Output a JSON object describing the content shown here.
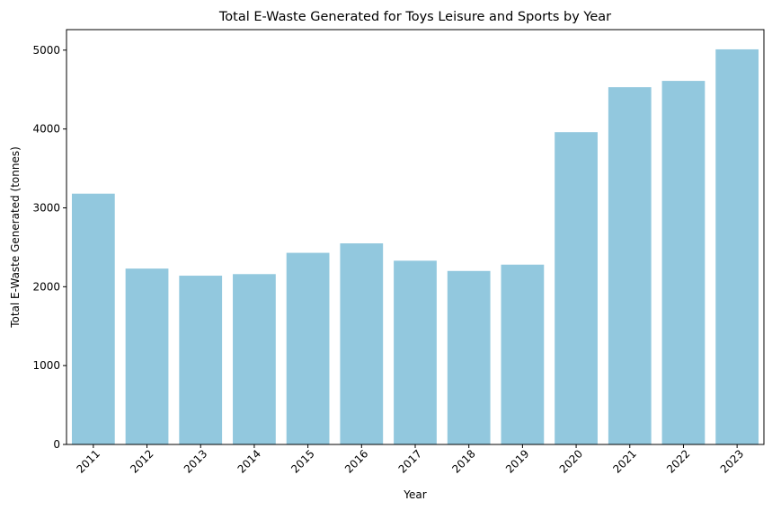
{
  "chart_data": {
    "type": "bar",
    "title": "Total E-Waste Generated for Toys Leisure and Sports by Year",
    "xlabel": "Year",
    "ylabel": "Total E-Waste Generated (tonnes)",
    "categories": [
      "2011",
      "2012",
      "2013",
      "2014",
      "2015",
      "2016",
      "2017",
      "2018",
      "2019",
      "2020",
      "2021",
      "2022",
      "2023"
    ],
    "values": [
      3180,
      2230,
      2140,
      2160,
      2430,
      2550,
      2330,
      2200,
      2280,
      3960,
      4530,
      4610,
      5010
    ],
    "ylim": [
      0,
      5260
    ],
    "yticks": [
      0,
      1000,
      2000,
      3000,
      4000,
      5000
    ],
    "x_tick_rotation": 45,
    "grid": false,
    "bar_color": "#92c8de"
  }
}
